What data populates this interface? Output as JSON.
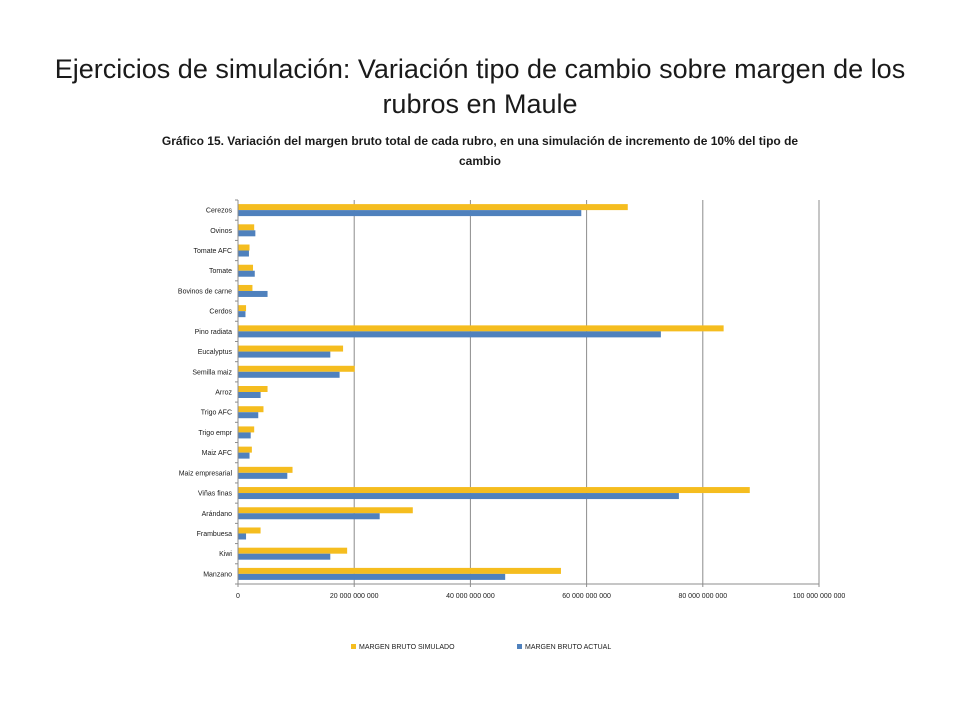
{
  "slide": {
    "title": "Ejercicios de simulación: Variación tipo de cambio sobre margen de los rubros en Maule"
  },
  "chart_data": {
    "type": "bar",
    "orientation": "horizontal",
    "title": "Gráfico 15. Variación del margen bruto total de cada rubro, en una simulación de incremento de 10% del tipo de cambio",
    "categories": [
      "Cerezos",
      "Ovinos",
      "Tomate AFC",
      "Tomate",
      "Bovinos de carne",
      "Cerdos",
      "Pino radiata",
      "Eucalyptus",
      "Semilla maiz",
      "Arroz",
      "Trigo AFC",
      "Trigo empr",
      "Maiz AFC",
      "Maiz empresarial",
      "Viñas finas",
      "Arándano",
      "Frambuesa",
      "Kiwi",
      "Manzano"
    ],
    "series": [
      {
        "name": "MARGEN BRUTO SIMULADO",
        "color": "#F5BD1F",
        "values": [
          67000000000,
          2700000000,
          1900000000,
          2500000000,
          2400000000,
          1300000000,
          83500000000,
          18000000000,
          20000000000,
          5000000000,
          4300000000,
          2700000000,
          2300000000,
          9300000000,
          88000000000,
          30000000000,
          3800000000,
          18700000000,
          55500000000
        ]
      },
      {
        "name": "MARGEN BRUTO ACTUAL",
        "color": "#4F81BD",
        "values": [
          59000000000,
          2900000000,
          1800000000,
          2800000000,
          5000000000,
          1200000000,
          72700000000,
          15800000000,
          17400000000,
          3800000000,
          3400000000,
          2100000000,
          1900000000,
          8400000000,
          75800000000,
          24300000000,
          1300000000,
          15800000000,
          45900000000
        ]
      }
    ],
    "xlim": [
      0,
      100000000000
    ],
    "xticks": [
      0,
      20000000000,
      40000000000,
      60000000000,
      80000000000,
      100000000000
    ],
    "xtick_labels": [
      "0",
      "20 000 000 000",
      "40 000 000 000",
      "60 000 000 000",
      "80 000 000 000",
      "100 000 000 000"
    ],
    "grid": true,
    "legend": "bottom"
  }
}
